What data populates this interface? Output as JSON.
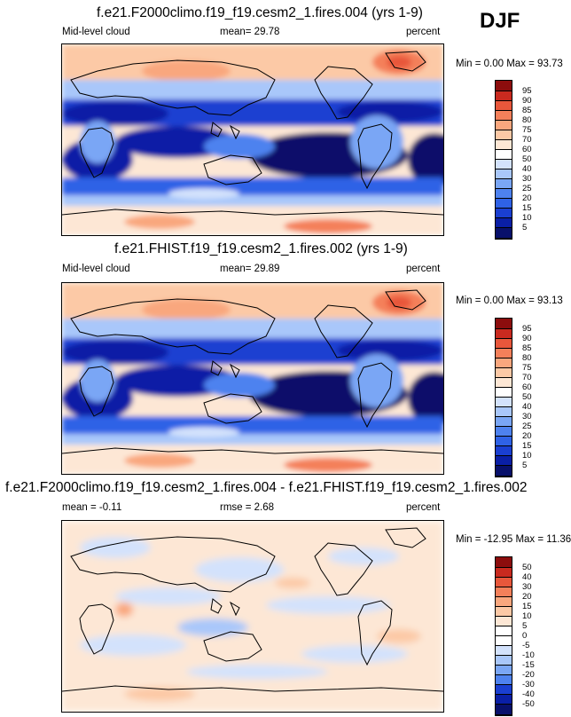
{
  "season": "DJF",
  "colors": {
    "ramp": [
      "#08106b",
      "#0a1fa6",
      "#1a3fd1",
      "#2f62e6",
      "#4e82ef",
      "#7aa6f5",
      "#a9c7fa",
      "#d3e2fc",
      "#ffffff",
      "#fde7d5",
      "#fcc9a6",
      "#f9a77e",
      "#f4805a",
      "#e8573b",
      "#c92a1f",
      "#8c0d0d"
    ],
    "diff_ramp": [
      "#08106b",
      "#0a1fa6",
      "#1a3fd1",
      "#2f62e6",
      "#4e82ef",
      "#7aa6f5",
      "#a9c7fa",
      "#d3e2fc",
      "#ffffff",
      "#fde7d5",
      "#fcc9a6",
      "#f9a77e",
      "#f4805a",
      "#e8573b",
      "#c92a1f",
      "#8c0d0d"
    ]
  },
  "chart_data": [
    {
      "type": "heatmap",
      "title": "f.e21.F2000climo.f19_f19.cesm2_1.fires.004 (yrs 1-9)",
      "variable": "Mid-level cloud",
      "mean_label": "mean=  29.78",
      "units": "percent",
      "minmax_label": "Min =   0.00 Max =  93.73",
      "levels": [
        "95",
        "90",
        "85",
        "80",
        "75",
        "70",
        "60",
        "50",
        "40",
        "30",
        "25",
        "20",
        "15",
        "10",
        "5"
      ]
    },
    {
      "type": "heatmap",
      "title": "f.e21.FHIST.f19_f19.cesm2_1.fires.002 (yrs 1-9)",
      "variable": "Mid-level cloud",
      "mean_label": "mean=  29.89",
      "units": "percent",
      "minmax_label": "Min =   0.00 Max =  93.13",
      "levels": [
        "95",
        "90",
        "85",
        "80",
        "75",
        "70",
        "60",
        "50",
        "40",
        "30",
        "25",
        "20",
        "15",
        "10",
        "5"
      ]
    },
    {
      "type": "heatmap",
      "title": "f.e21.F2000climo.f19_f19.cesm2_1.fires.004 - f.e21.FHIST.f19_f19.cesm2_1.fires.002",
      "mean_label": "mean =  -0.11",
      "rmse_label": "rmse =   2.68",
      "units": "percent",
      "minmax_label": "Min = -12.95 Max =  11.36",
      "levels": [
        "50",
        "40",
        "30",
        "20",
        "15",
        "10",
        "5",
        "0",
        "-5",
        "-10",
        "-15",
        "-20",
        "-30",
        "-40",
        "-50"
      ]
    }
  ]
}
